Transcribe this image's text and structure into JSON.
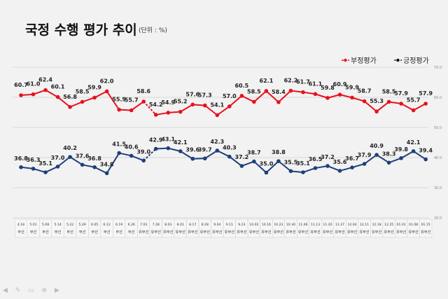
{
  "title": "국정 수행 평가 추이",
  "unit": "(단위 : %)",
  "chart_data": {
    "type": "line",
    "title": "국정 수행 평가 추이",
    "x": [
      "4.18",
      "5.01",
      "5.08",
      "5.14",
      "5.22",
      "5.29",
      "6.05",
      "6.12",
      "6.19",
      "6.26",
      "7.03",
      "7.28",
      "8.03",
      "8.01",
      "8.17",
      "8.28",
      "9.04",
      "9.11",
      "9.23",
      "10.02",
      "10.16",
      "10.23",
      "10.30",
      "11.06",
      "11.13",
      "11.20",
      "11.27",
      "12.04",
      "12.11",
      "12.18",
      "12.25",
      "01.01",
      "01.08",
      "01.15"
    ],
    "method": [
      "무선",
      "무선",
      "무선",
      "무선",
      "무선",
      "무선",
      "무선",
      "무선",
      "무선",
      "무선",
      "유무선",
      "유무선",
      "유무선",
      "유무선",
      "유무선",
      "유무선",
      "유무선",
      "유무선",
      "유무선",
      "유무선",
      "유무선",
      "유무선",
      "유무선",
      "유무선",
      "유무선",
      "유무선",
      "유무선",
      "유무선",
      "유무선",
      "유무선",
      "유무선",
      "유무선",
      "유무선",
      "유무선"
    ],
    "series": [
      {
        "name": "부정평가",
        "color": "#e8101e",
        "values": [
          60.7,
          61.0,
          62.4,
          60.1,
          56.8,
          58.5,
          59.9,
          62.0,
          55.9,
          55.7,
          58.6,
          54.2,
          54.9,
          55.2,
          57.6,
          57.3,
          54.1,
          57.0,
          60.5,
          58.5,
          62.1,
          58.4,
          62.2,
          61.7,
          61.1,
          59.8,
          60.9,
          59.9,
          58.7,
          55.3,
          58.5,
          57.9,
          55.7,
          57.9
        ]
      },
      {
        "name": "긍정평가",
        "color": "#1f3f7a",
        "values": [
          36.8,
          36.3,
          35.1,
          37.0,
          40.2,
          37.6,
          36.8,
          34.8,
          41.5,
          40.6,
          39.0,
          42.9,
          43.1,
          42.1,
          39.6,
          39.7,
          42.3,
          40.3,
          37.2,
          38.7,
          35.0,
          38.8,
          35.5,
          35.1,
          36.5,
          37.2,
          35.6,
          36.7,
          37.9,
          40.9,
          38.3,
          39.8,
          42.1,
          39.4
        ]
      }
    ],
    "yticks": [
      "70.0",
      "60.0",
      "50.0",
      "40.0",
      "30.0",
      "20.0"
    ],
    "ylim": [
      20,
      70
    ],
    "legend": "top-right",
    "grid": true
  }
}
